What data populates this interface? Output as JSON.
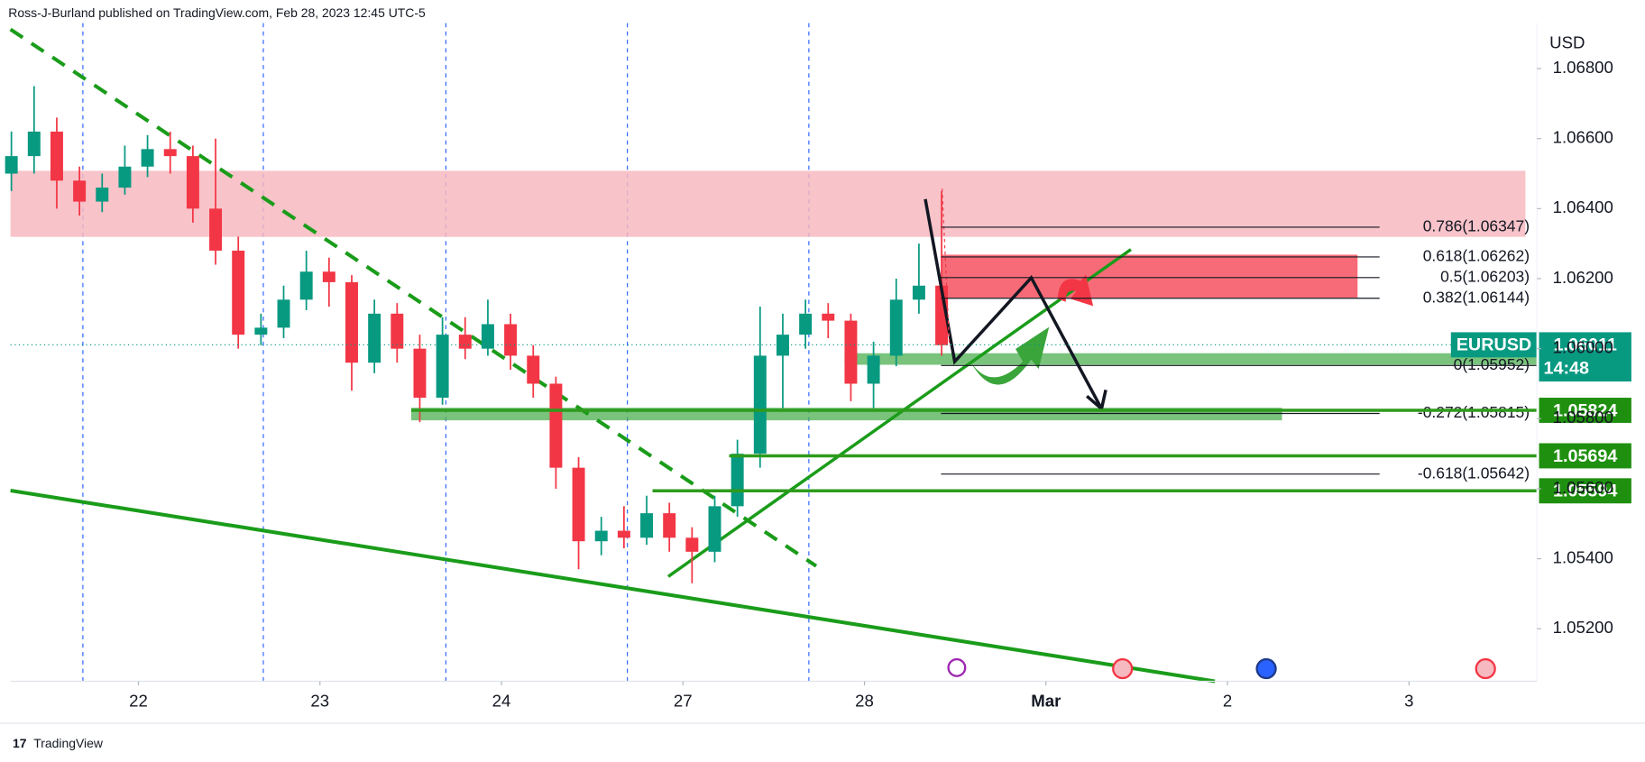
{
  "chart_data": {
    "type": "candlestick",
    "header": "Ross-J-Burland published on TradingView.com, Feb 28, 2023 12:45 UTC-5",
    "currency": "USD",
    "footer": "TradingView",
    "up_color": "#089981",
    "down_color": "#f23645",
    "x": [
      -0.7,
      -0.575,
      -0.45,
      -0.325,
      -0.2,
      -0.075,
      0.05,
      0.175,
      0.3,
      0.425,
      0.55,
      0.675,
      0.8,
      0.925,
      1.05,
      1.175,
      1.3,
      1.425,
      1.55,
      1.675,
      1.8,
      1.925,
      2.05,
      2.175,
      2.3,
      2.425,
      2.55,
      2.675,
      2.8,
      2.925,
      3.05,
      3.175,
      3.3,
      3.425,
      3.55,
      3.675,
      3.8,
      3.925,
      4.05,
      4.175,
      4.3,
      4.425
    ],
    "open": [
      1.065,
      1.0655,
      1.0662,
      1.0648,
      1.0642,
      1.0646,
      1.0652,
      1.0657,
      1.0655,
      1.064,
      1.0628,
      1.0604,
      1.0606,
      1.0614,
      1.0622,
      1.0619,
      1.0596,
      1.061,
      1.06,
      1.0586,
      1.0604,
      1.06,
      1.0607,
      1.0598,
      1.059,
      1.0566,
      1.0545,
      1.0548,
      1.0546,
      1.0553,
      1.0546,
      1.0542,
      1.0555,
      1.057,
      1.0598,
      1.0604,
      1.061,
      1.0608,
      1.059,
      1.0598,
      1.0614,
      1.0618
    ],
    "high": [
      1.0662,
      1.0675,
      1.0666,
      1.0652,
      1.065,
      1.0658,
      1.0661,
      1.0662,
      1.0658,
      1.066,
      1.0632,
      1.061,
      1.0618,
      1.0628,
      1.0626,
      1.0621,
      1.0614,
      1.0613,
      1.0604,
      1.0609,
      1.0609,
      1.0614,
      1.061,
      1.0601,
      1.0592,
      1.0569,
      1.0552,
      1.0555,
      1.0558,
      1.0556,
      1.0549,
      1.0558,
      1.0574,
      1.0612,
      1.061,
      1.0614,
      1.0613,
      1.061,
      1.0602,
      1.062,
      1.063,
      1.0645
    ],
    "low": [
      1.0645,
      1.065,
      1.064,
      1.0638,
      1.0639,
      1.0644,
      1.0649,
      1.065,
      1.0636,
      1.0624,
      1.06,
      1.0601,
      1.0603,
      1.0611,
      1.0612,
      1.0588,
      1.0593,
      1.0596,
      1.0579,
      1.0584,
      1.0597,
      1.0598,
      1.0594,
      1.0586,
      1.056,
      1.0537,
      1.0541,
      1.0543,
      1.0544,
      1.0542,
      1.0533,
      1.0539,
      1.0552,
      1.0566,
      1.0583,
      1.06,
      1.0603,
      1.0585,
      1.0583,
      1.0595,
      1.061,
      1.0598
    ],
    "close": [
      1.0655,
      1.0662,
      1.0648,
      1.0642,
      1.0646,
      1.0652,
      1.0657,
      1.0655,
      1.064,
      1.0628,
      1.0604,
      1.0606,
      1.0614,
      1.0622,
      1.0619,
      1.0596,
      1.061,
      1.06,
      1.0586,
      1.0604,
      1.06,
      1.0607,
      1.0598,
      1.059,
      1.0566,
      1.0545,
      1.0548,
      1.0546,
      1.0553,
      1.0546,
      1.0542,
      1.0555,
      1.057,
      1.0598,
      1.0604,
      1.061,
      1.0608,
      1.059,
      1.0598,
      1.0614,
      1.0618,
      1.0601
    ],
    "xlim": [
      -0.705,
      7.705
    ],
    "xticks": [
      {
        "value": 0,
        "label": "22"
      },
      {
        "value": 1,
        "label": "23"
      },
      {
        "value": 2,
        "label": "24"
      },
      {
        "value": 3,
        "label": "27"
      },
      {
        "value": 4,
        "label": "28"
      },
      {
        "value": 5,
        "label": "Mar"
      },
      {
        "value": 6,
        "label": "2"
      },
      {
        "value": 7,
        "label": "3"
      }
    ],
    "ylim": [
      1.0505,
      1.0693
    ],
    "yticks": [
      {
        "value": 1.052,
        "label": "1.05200"
      },
      {
        "value": 1.054,
        "label": "1.05400"
      },
      {
        "value": 1.056,
        "label": "1.05600"
      },
      {
        "value": 1.058,
        "label": "1.05800"
      },
      {
        "value": 1.06,
        "label": "1.06000"
      },
      {
        "value": 1.062,
        "label": "1.06200"
      },
      {
        "value": 1.064,
        "label": "1.06400"
      },
      {
        "value": 1.066,
        "label": "1.06600"
      },
      {
        "value": 1.068,
        "label": "1.06800"
      }
    ],
    "fib": [
      {
        "label": "0.786(1.06347)",
        "price": 1.06347
      },
      {
        "label": "0.618(1.06262)",
        "price": 1.06262
      },
      {
        "label": "0.5(1.06203)",
        "price": 1.06203
      },
      {
        "label": "0.382(1.06144)",
        "price": 1.06144
      },
      {
        "label": "0(1.05952)",
        "price": 1.05952
      },
      {
        "label": "-0.272(1.05815)",
        "price": 1.05815
      },
      {
        "label": "-0.618(1.05642)",
        "price": 1.05642
      }
    ],
    "current": {
      "symbol": "EURUSD",
      "price": 1.06011,
      "countdown": "14:48"
    },
    "price_lines": [
      1.05824,
      1.05694,
      1.05594
    ]
  }
}
